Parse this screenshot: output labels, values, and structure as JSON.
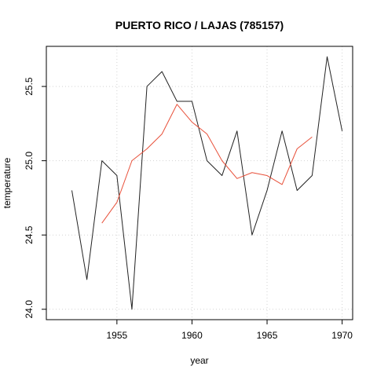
{
  "chart_data": {
    "type": "line",
    "title": "PUERTO RICO / LAJAS (785157)",
    "xlabel": "year",
    "ylabel": "temperature",
    "xlim": [
      1950.3,
      1970.7
    ],
    "ylim": [
      23.93,
      25.77
    ],
    "x_ticks": [
      1955,
      1960,
      1965,
      1970
    ],
    "y_ticks": [
      24.0,
      24.5,
      25.0,
      25.5
    ],
    "y_tick_labels": [
      "24.0",
      "24.5",
      "25.0",
      "25.5"
    ],
    "grid": true,
    "series": [
      {
        "color": "#222222",
        "x": [
          1952,
          1953,
          1954,
          1955,
          1956,
          1957,
          1958,
          1959,
          1960,
          1961,
          1962,
          1963,
          1964,
          1965,
          1966,
          1967,
          1968,
          1969,
          1970
        ],
        "y": [
          24.8,
          24.2,
          25.0,
          24.9,
          24.0,
          25.5,
          25.6,
          25.4,
          25.4,
          25.0,
          24.9,
          25.2,
          24.5,
          24.8,
          25.2,
          24.8,
          24.9,
          25.7,
          25.2
        ]
      },
      {
        "color": "#e8503a",
        "x": [
          1954,
          1955,
          1956,
          1957,
          1958,
          1959,
          1960,
          1961,
          1962,
          1963,
          1964,
          1965,
          1966,
          1967,
          1968
        ],
        "y": [
          24.58,
          24.72,
          25.0,
          25.08,
          25.18,
          25.38,
          25.26,
          25.18,
          25.0,
          24.88,
          24.92,
          24.9,
          24.84,
          25.08,
          25.16
        ]
      }
    ]
  }
}
